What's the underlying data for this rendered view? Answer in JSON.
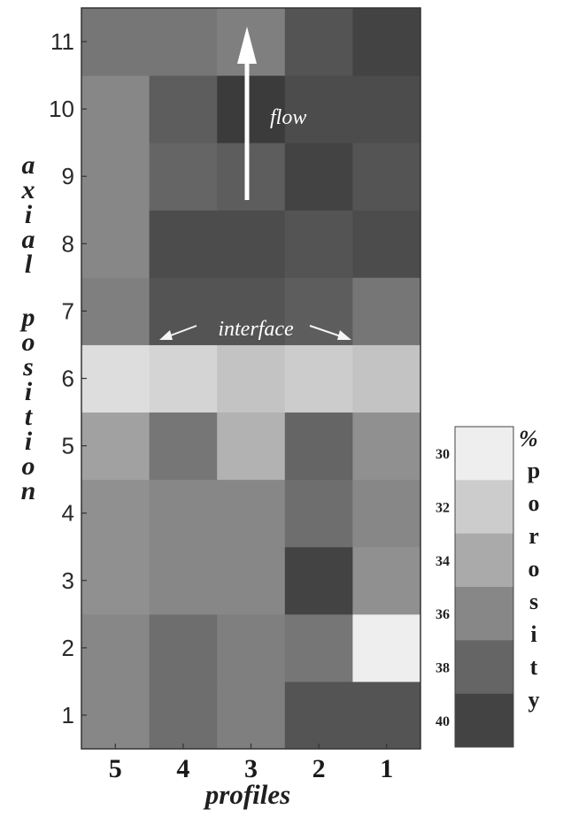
{
  "chart_data": {
    "type": "heatmap",
    "xlabel": "profiles",
    "ylabel": "axial position",
    "x_categories": [
      "5",
      "4",
      "3",
      "2",
      "1"
    ],
    "y_categories": [
      "1",
      "2",
      "3",
      "4",
      "5",
      "6",
      "7",
      "8",
      "9",
      "10",
      "11"
    ],
    "values": [
      [
        36,
        37.5,
        36.5,
        39,
        39
      ],
      [
        36,
        37.5,
        36.5,
        37,
        30
      ],
      [
        35.5,
        36,
        36,
        40,
        35.5
      ],
      [
        35.5,
        36,
        36,
        37.5,
        36
      ],
      [
        34.5,
        37,
        33.5,
        38,
        35.5
      ],
      [
        31,
        31.5,
        32.5,
        32,
        32.5
      ],
      [
        36.5,
        39,
        39,
        38.5,
        37
      ],
      [
        36,
        39.5,
        39.5,
        39,
        39.5
      ],
      [
        36,
        38,
        38.5,
        40,
        39
      ],
      [
        36,
        38.5,
        40.5,
        39.5,
        39.5
      ],
      [
        37,
        37,
        36.5,
        39,
        40
      ]
    ],
    "colorbar": {
      "title": "% porosity",
      "ticks": [
        "30",
        "32",
        "34",
        "36",
        "38",
        "40"
      ],
      "range": [
        29,
        41
      ]
    },
    "annotations": [
      "flow",
      "interface"
    ]
  }
}
